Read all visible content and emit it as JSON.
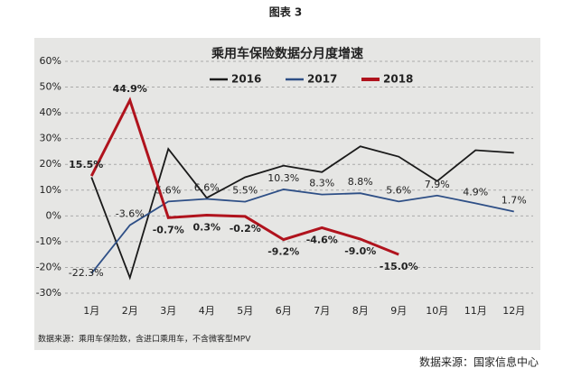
{
  "header": {
    "title": "图表 3"
  },
  "chart_data": {
    "type": "line",
    "title": "乘用车保险数据分月度增速",
    "categories": [
      "1月",
      "2月",
      "3月",
      "4月",
      "5月",
      "6月",
      "7月",
      "8月",
      "9月",
      "10月",
      "11月",
      "12月"
    ],
    "series": [
      {
        "name": "2016",
        "color": "#1a1a1a",
        "values": [
          15,
          -24,
          26,
          7,
          15,
          19.5,
          17,
          27,
          23,
          13.5,
          25.5,
          24.5
        ]
      },
      {
        "name": "2017",
        "color": "#2e4f86",
        "values": [
          -22.3,
          -3.6,
          5.6,
          6.6,
          5.5,
          10.3,
          8.3,
          8.8,
          5.6,
          7.9,
          4.9,
          1.7
        ],
        "value_labels": [
          "-22.3%",
          "-3.6%",
          "5.6%",
          "6.6%",
          "5.5%",
          "10.3%",
          "8.3%",
          "8.8%",
          "5.6%",
          "7.9%",
          "4.9%",
          "1.7%"
        ]
      },
      {
        "name": "2018",
        "color": "#b0131d",
        "values": [
          15.5,
          44.9,
          -0.7,
          0.3,
          -0.2,
          -9.2,
          -4.6,
          -9.0,
          -15.0,
          null,
          null,
          null
        ],
        "value_labels": [
          "15.5%",
          "44.9%",
          "-0.7%",
          "0.3%",
          "-0.2%",
          "-9.2%",
          "-4.6%",
          "-9.0%",
          "-15.0%",
          null,
          null,
          null
        ]
      }
    ],
    "ylim": [
      -30,
      60
    ],
    "yticks": [
      {
        "value": -30,
        "label": "-30%"
      },
      {
        "value": -20,
        "label": "-20%"
      },
      {
        "value": -10,
        "label": "-10%"
      },
      {
        "value": 0,
        "label": "0%"
      },
      {
        "value": 10,
        "label": "10%"
      },
      {
        "value": 20,
        "label": "20%"
      },
      {
        "value": 30,
        "label": "30%"
      },
      {
        "value": 40,
        "label": "40%"
      },
      {
        "value": 50,
        "label": "50%"
      },
      {
        "value": 60,
        "label": "60%"
      }
    ],
    "grid": true,
    "legend": "top",
    "note": "数据来源：乘用车保险数，含进口乘用车，不含微客型MPV"
  },
  "source": "数据来源：国家信息中心"
}
